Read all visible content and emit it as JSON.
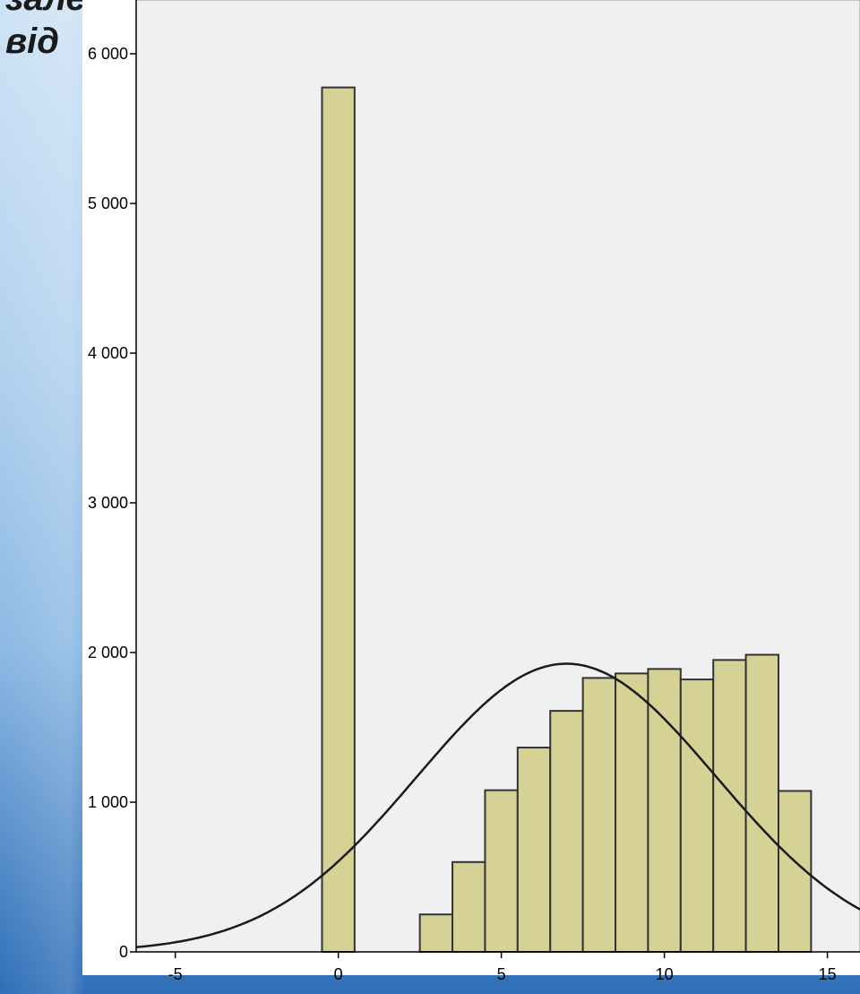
{
  "heading": {
    "line1": "залежн",
    "line2": "від"
  },
  "colors": {
    "plot_background": "#f0f0f0",
    "bar_fill": "#d6d194",
    "bar_stroke": "#333333",
    "curve": "#1a1a1a"
  },
  "chart_data": {
    "type": "bar",
    "title": "",
    "xlabel": "",
    "ylabel": "",
    "xlim": [
      -6.2,
      16
    ],
    "ylim": [
      0,
      6300
    ],
    "bin_width": 1,
    "bins": [
      {
        "x": 0,
        "count": 5775
      },
      {
        "x": 3,
        "count": 250
      },
      {
        "x": 4,
        "count": 600
      },
      {
        "x": 5,
        "count": 1080
      },
      {
        "x": 6,
        "count": 1365
      },
      {
        "x": 7,
        "count": 1610
      },
      {
        "x": 8,
        "count": 1830
      },
      {
        "x": 9,
        "count": 1860
      },
      {
        "x": 10,
        "count": 1890
      },
      {
        "x": 11,
        "count": 1820
      },
      {
        "x": 12,
        "count": 1950
      },
      {
        "x": 13,
        "count": 1985
      },
      {
        "x": 14,
        "count": 1075
      }
    ],
    "normal_curve": {
      "mean": 7,
      "sd": 4.6,
      "peak": 1925
    },
    "x_ticks": [
      -5,
      0,
      5,
      10,
      15
    ],
    "x_tick_labels": [
      "-5",
      "0",
      "5",
      "10",
      "15"
    ],
    "y_ticks": [
      0,
      1000,
      2000,
      3000,
      4000,
      5000,
      6000
    ],
    "y_tick_labels": [
      "0",
      "1 000",
      "2 000",
      "3 000",
      "4 000",
      "5 000",
      "6 000"
    ],
    "grid": false,
    "legend": "none"
  }
}
